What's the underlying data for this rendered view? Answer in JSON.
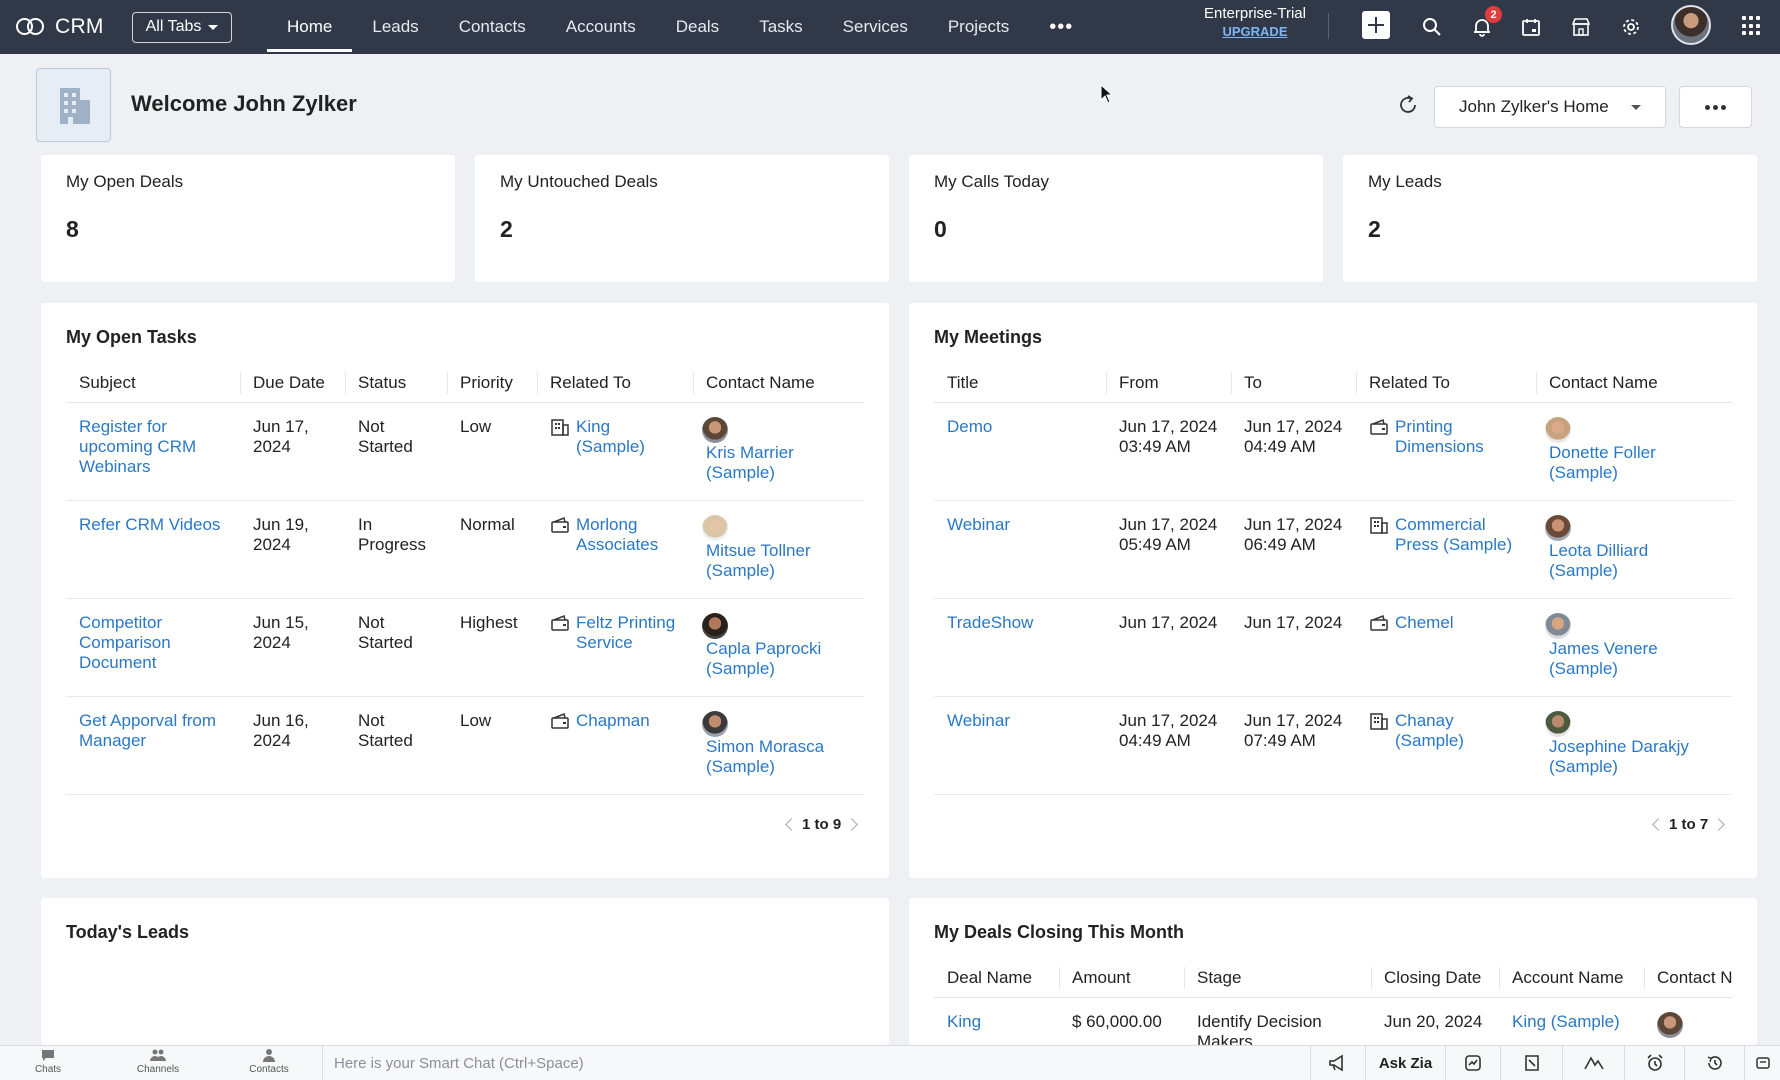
{
  "app": {
    "name": "CRM",
    "all_tabs_label": "All Tabs",
    "nav": [
      "Home",
      "Leads",
      "Contacts",
      "Accounts",
      "Deals",
      "Tasks",
      "Services",
      "Projects"
    ],
    "active_nav": "Home",
    "trial_label": "Enterprise-Trial",
    "upgrade_label": "UPGRADE",
    "notification_count": "2"
  },
  "header": {
    "welcome": "Welcome John Zylker",
    "home_select": "John Zylker's Home"
  },
  "kpis": [
    {
      "label": "My Open Deals",
      "value": "8"
    },
    {
      "label": "My Untouched Deals",
      "value": "2"
    },
    {
      "label": "My Calls Today",
      "value": "0"
    },
    {
      "label": "My Leads",
      "value": "2"
    }
  ],
  "tasks": {
    "title": "My Open Tasks",
    "columns": [
      "Subject",
      "Due Date",
      "Status",
      "Priority",
      "Related To",
      "Contact Name"
    ],
    "rows": [
      {
        "subject": "Register for upcoming CRM Webinars",
        "due": "Jun 17, 2024",
        "status": "Not Started",
        "priority": "Low",
        "related": "King (Sample)",
        "related_icon": "account-icon",
        "contact": "Kris Marrier (Sample)"
      },
      {
        "subject": "Refer CRM Videos",
        "due": "Jun 19, 2024",
        "status": "In Progress",
        "priority": "Normal",
        "related": "Morlong Associates",
        "related_icon": "deal-icon",
        "contact": "Mitsue Tollner (Sample)"
      },
      {
        "subject": "Competitor Comparison Document",
        "due": "Jun 15, 2024",
        "status": "Not Started",
        "priority": "Highest",
        "related": "Feltz Printing Service",
        "related_icon": "deal-icon",
        "contact": "Capla Paprocki (Sample)"
      },
      {
        "subject": "Get Apporval from Manager",
        "due": "Jun 16, 2024",
        "status": "Not Started",
        "priority": "Low",
        "related": "Chapman",
        "related_icon": "deal-icon",
        "contact": "Simon Morasca (Sample)"
      }
    ],
    "pager": "1 to 9"
  },
  "meetings": {
    "title": "My Meetings",
    "columns": [
      "Title",
      "From",
      "To",
      "Related To",
      "Contact Name"
    ],
    "rows": [
      {
        "title": "Demo",
        "from": "Jun 17, 2024 03:49 AM",
        "to": "Jun 17, 2024 04:49 AM",
        "related": "Printing Dimensions",
        "related_icon": "deal-icon",
        "contact": "Donette Foller (Sample)"
      },
      {
        "title": "Webinar",
        "from": "Jun 17, 2024 05:49 AM",
        "to": "Jun 17, 2024 06:49 AM",
        "related": "Commercial Press (Sample)",
        "related_icon": "account-icon",
        "contact": "Leota Dilliard (Sample)"
      },
      {
        "title": "TradeShow",
        "from": "Jun 17, 2024",
        "to": "Jun 17, 2024",
        "related": "Chemel",
        "related_icon": "deal-icon",
        "contact": "James Venere (Sample)"
      },
      {
        "title": "Webinar",
        "from": "Jun 17, 2024 04:49 AM",
        "to": "Jun 17, 2024 07:49 AM",
        "related": "Chanay (Sample)",
        "related_icon": "account-icon",
        "contact": "Josephine Darakjy (Sample)"
      }
    ],
    "pager": "1 to 7"
  },
  "leads": {
    "title": "Today's Leads"
  },
  "deals": {
    "title": "My Deals Closing This Month",
    "columns": [
      "Deal Name",
      "Amount",
      "Stage",
      "Closing Date",
      "Account Name",
      "Contact N"
    ],
    "rows": [
      {
        "name": "King",
        "amount": "$ 60,000.00",
        "stage": "Identify Decision Makers",
        "closing": "Jun 20, 2024",
        "account": "King (Sample)"
      }
    ]
  },
  "bottombar": {
    "items": [
      "Chats",
      "Channels",
      "Contacts"
    ],
    "smartchat_placeholder": "Here is your Smart Chat (Ctrl+Space)",
    "ask_zia": "Ask Zia"
  },
  "colors": {
    "topbar": "#313949",
    "link": "#2a78c4",
    "background": "#eef0f4"
  }
}
